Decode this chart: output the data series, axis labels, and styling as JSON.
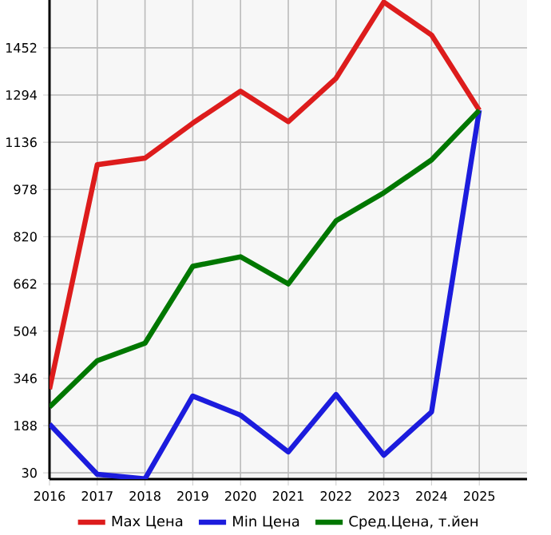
{
  "chart_data": {
    "type": "line",
    "x": [
      2016,
      2017,
      2018,
      2019,
      2020,
      2021,
      2022,
      2023,
      2024,
      2025
    ],
    "series": [
      {
        "name": "Max Цена",
        "color": "#dd1c1c",
        "values": [
          310,
          1061,
          1083,
          1200,
          1307,
          1205,
          1350,
          1605,
          1495,
          1243
        ]
      },
      {
        "name": "Min Цена",
        "color": "#1c1cdd",
        "values": [
          193,
          25,
          10,
          287,
          223,
          100,
          292,
          89,
          234,
          1243
        ]
      },
      {
        "name": "Сред.Цена, т.йен",
        "color": "#007700",
        "values": [
          250,
          405,
          464,
          721,
          753,
          662,
          873,
          967,
          1077,
          1243
        ]
      }
    ],
    "xlim": [
      2016,
      2026
    ],
    "xticks": [
      2016,
      2017,
      2018,
      2019,
      2020,
      2021,
      2022,
      2023,
      2024,
      2025
    ],
    "ylim": [
      9,
      1612
    ],
    "yticks": [
      30,
      188,
      346,
      504,
      662,
      820,
      978,
      1136,
      1294,
      1452
    ],
    "grid": true,
    "legend": "bottom",
    "marker": "none",
    "line_style": "solid"
  }
}
